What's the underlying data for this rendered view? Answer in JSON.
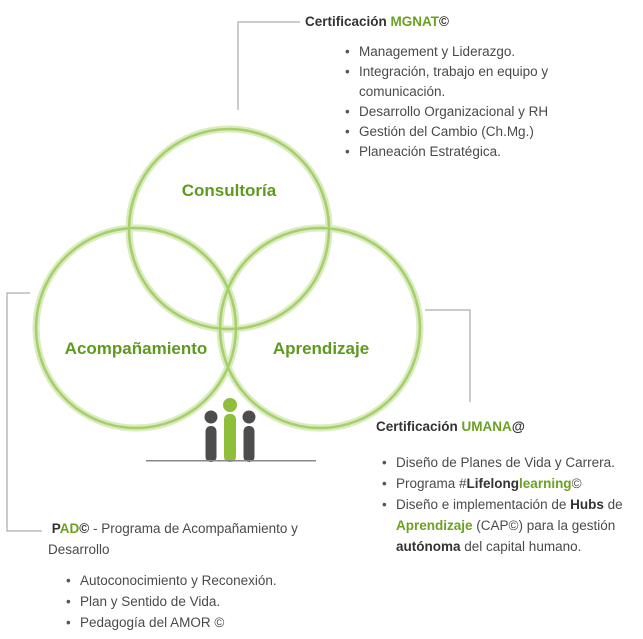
{
  "diagram": {
    "circles": [
      {
        "id": "consultoria",
        "label": "Consultoría"
      },
      {
        "id": "acompanamiento",
        "label": "Acompañamiento"
      },
      {
        "id": "aprendizaje",
        "label": "Aprendizaje"
      }
    ],
    "colors": {
      "ring": "#a6cf6b",
      "ring_glow": "#d9ecbe",
      "label": "#5e9a1f",
      "icon_dark": "#4d4d4d",
      "icon_green": "#8fbe3b",
      "connector": "#9a9a9a"
    }
  },
  "mgnat": {
    "title_prefix": "Certificación ",
    "title_highlight": "MGNAT",
    "title_suffix": "©",
    "items": [
      "Management y Liderazgo.",
      "Integración, trabajo en equipo y",
      "comunicación.",
      "Desarrollo Organizacional y RH",
      "Gestión del Cambio (Ch.Mg.)",
      "Planeación Estratégica."
    ]
  },
  "umana": {
    "title_prefix": "Certificación ",
    "title_highlight": "UMANA",
    "title_suffix": "@",
    "item1": "Diseño de Planes de Vida y Carrera.",
    "item2_pre": "Programa #",
    "item2_bold": "Lifelong",
    "item2_green": "learning",
    "item2_post": "©",
    "item3_pre": "Diseño e implementación de ",
    "item3_bold": "Hubs",
    "item3_mid1": " de",
    "item3_green": "Aprendizaje",
    "item3_mid2": " (CAP©) para la gestión",
    "item3_bold2": "autónoma",
    "item3_post": " del capital humano."
  },
  "pad": {
    "p": "P",
    "ad": "AD",
    "copy": "©",
    "rest": " - Programa de Acompañamiento y",
    "line2": "Desarrollo",
    "items": [
      "Autoconocimiento y Reconexión.",
      "Plan y Sentido de Vida.",
      "Pedagogía del AMOR ©"
    ]
  }
}
